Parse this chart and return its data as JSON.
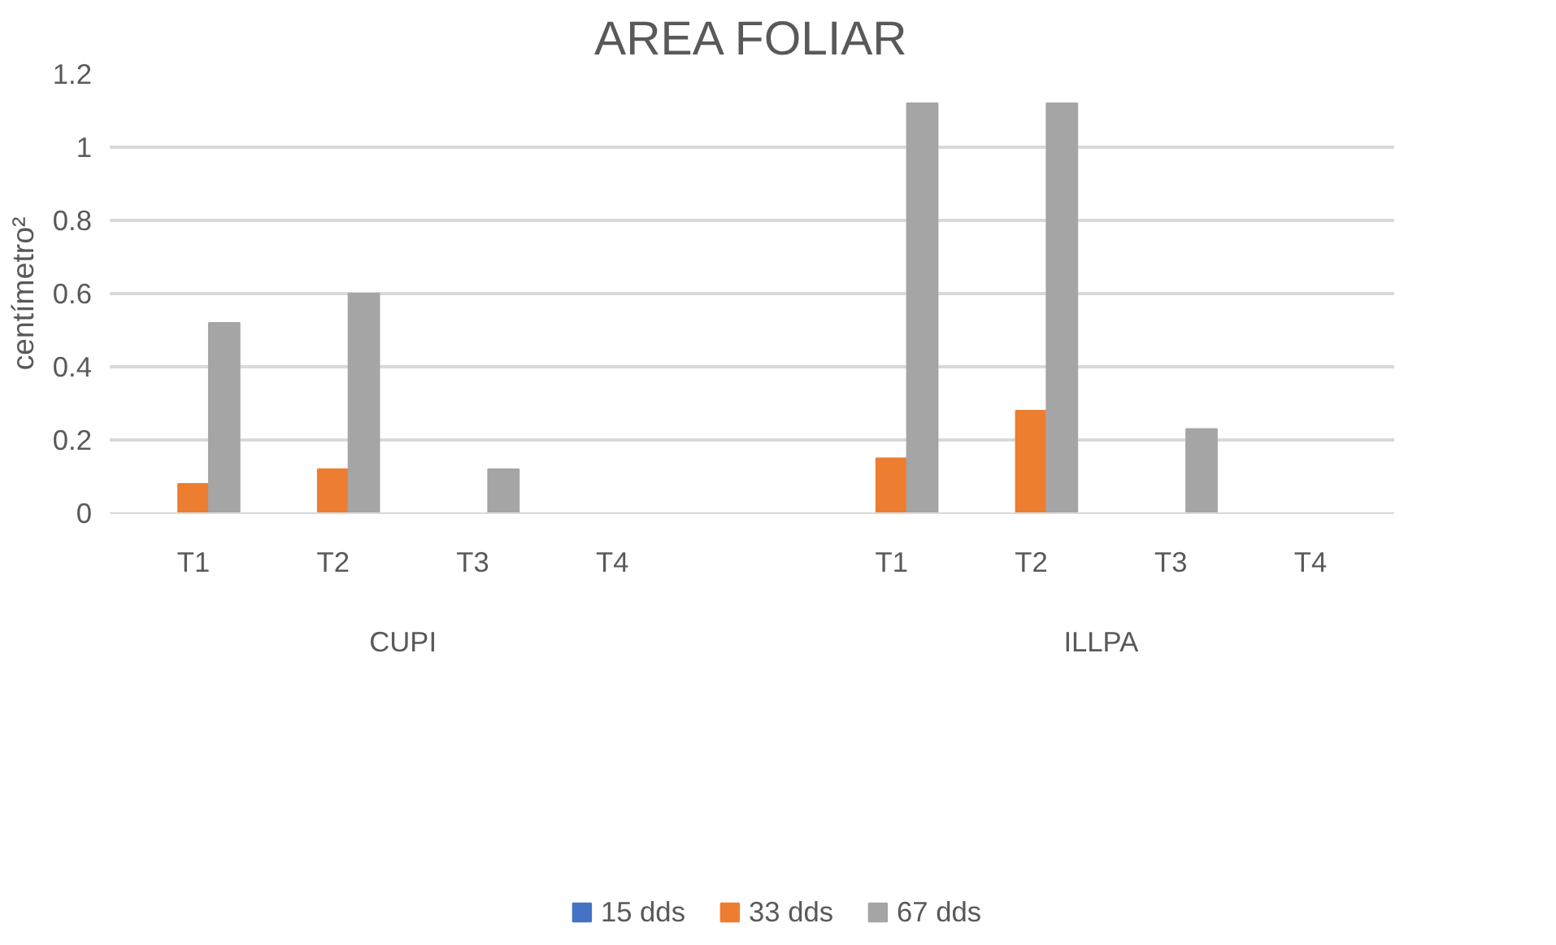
{
  "chart_data": {
    "type": "bar",
    "title": "AREA FOLIAR",
    "ylabel": "centímetro²",
    "categories": [
      "T1",
      "T2",
      "T3",
      "T4",
      null,
      "T1",
      "T2",
      "T3",
      "T4"
    ],
    "series": [
      {
        "name": "15 dds",
        "color": "#4472c4",
        "values": [
          0,
          0,
          0,
          0,
          null,
          0,
          0,
          0,
          0
        ]
      },
      {
        "name": "33 dds",
        "color": "#ed7d31",
        "values": [
          0.08,
          0.12,
          0,
          0,
          0,
          0.15,
          0.28,
          0,
          0
        ]
      },
      {
        "name": "67 dds",
        "color": "#a5a5a5",
        "values": [
          0.52,
          0.6,
          0.12,
          0,
          null,
          1.12,
          1.12,
          0.23,
          0
        ]
      }
    ],
    "annotations": [
      "CUPI",
      "ILLPA"
    ],
    "ylim": [
      0,
      1.2
    ],
    "yticks": [
      0,
      0.2,
      0.4,
      0.6,
      0.8,
      1,
      1.2
    ],
    "grid": "y",
    "legend": "bottom"
  }
}
